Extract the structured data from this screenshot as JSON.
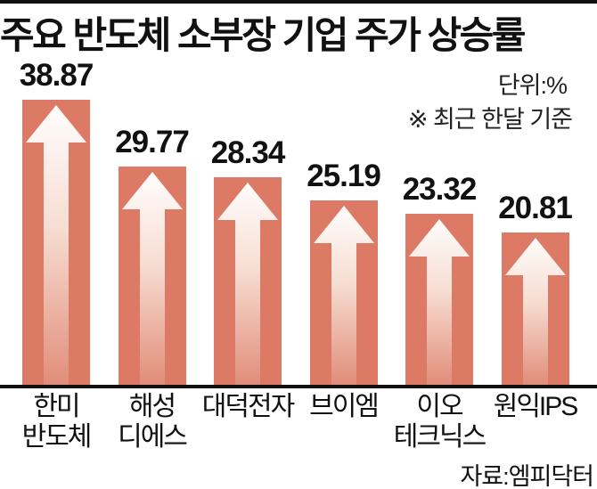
{
  "header": {
    "unit_label": "단위:%",
    "note": "※ 최근 한달 기준"
  },
  "footer": {
    "source": "자료:엠피닥터"
  },
  "colors": {
    "bar": "#dc7a66",
    "arrow_top": "#ffffff",
    "arrow_mid": "#f7ddd2",
    "arrow_bottom": "#e18d79",
    "rule": "#111111"
  },
  "chart_data": {
    "type": "bar",
    "title": "주요 반도체 소부장 기업 주가 상승률",
    "unit": "%",
    "note": "최근 한달 기준",
    "categories": [
      "한미반도체",
      "해성디에스",
      "대덕전자",
      "브이엠",
      "이오테크닉스",
      "원익IPS"
    ],
    "category_lines": [
      [
        "한미",
        "반도체"
      ],
      [
        "해성",
        "디에스"
      ],
      [
        "대덕전자"
      ],
      [
        "브이엠"
      ],
      [
        "이오",
        "테크닉스"
      ],
      [
        "원익IPS"
      ]
    ],
    "values": [
      38.87,
      29.77,
      28.34,
      25.19,
      23.32,
      20.81
    ],
    "value_labels": [
      "38.87",
      "29.77",
      "28.34",
      "25.19",
      "23.32",
      "20.81"
    ],
    "ylim": [
      0,
      40
    ],
    "grid": false,
    "legend": "none",
    "bar_marker": "up-arrow",
    "source": "엠피닥터"
  }
}
